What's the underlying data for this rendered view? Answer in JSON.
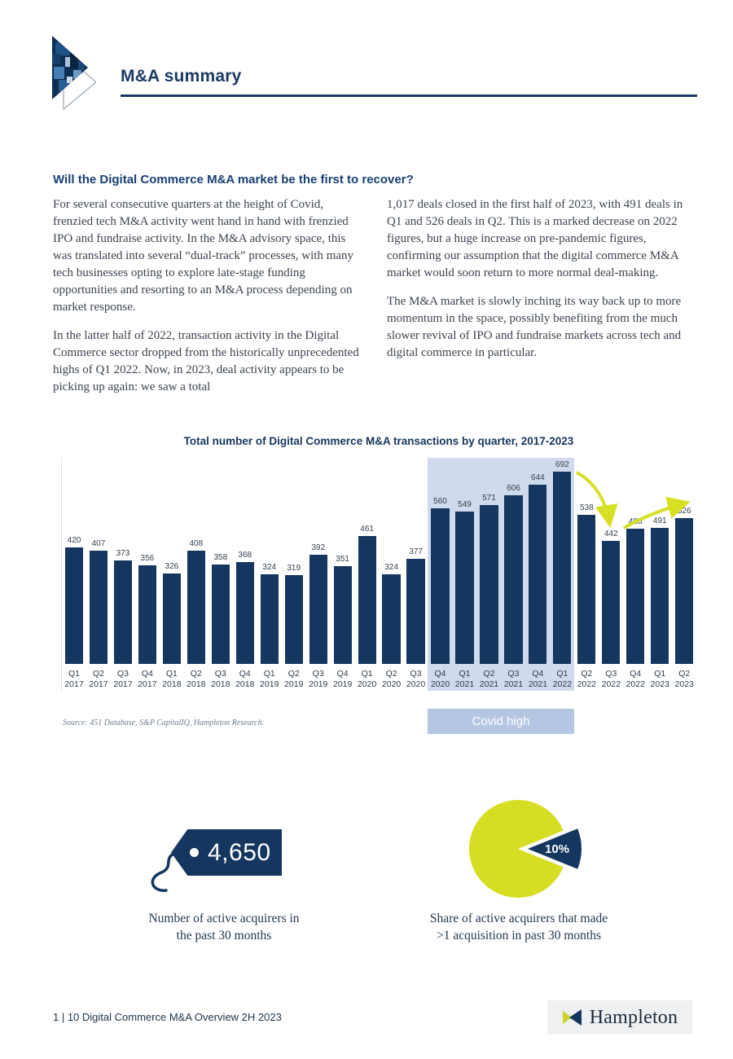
{
  "colors": {
    "navy": "#14365f",
    "accent_green": "#d7df23",
    "covid_band": "#cfdaec",
    "covid_label_bg": "#b5c6e3"
  },
  "header": {
    "title": "M&A summary"
  },
  "article": {
    "heading": "Will the Digital Commerce M&A market be the first to recover?",
    "left_paragraphs": [
      "For several consecutive quarters at the height of Covid, frenzied tech M&A activity went hand in hand with frenzied IPO and fundraise activity. In the M&A advisory space, this was translated into several “dual-track” processes, with many tech businesses opting to explore late-stage funding opportunities and resorting to an M&A process depending on market response.",
      "In the latter half of 2022, transaction activity in the Digital Commerce sector dropped from the historically unprecedented highs of Q1 2022.  Now, in 2023, deal activity appears to be picking up again: we saw a total"
    ],
    "right_paragraphs": [
      "1,017 deals closed in the first half of 2023, with 491 deals in Q1 and 526 deals in Q2. This is a marked decrease on 2022 figures, but a huge increase on pre-pandemic figures, confirming our assumption that the digital commerce M&A market would soon return to more normal deal-making.",
      "The M&A market is slowly inching its way back up to more momentum in the space, possibly benefiting from the much slower revival of IPO and fundraise markets across tech and digital commerce in particular."
    ]
  },
  "chart": {
    "source": "Source: 451 Database, S&P CapitalIQ, Hampleton Research."
  },
  "chart_data": {
    "type": "bar",
    "title": "Total number of Digital Commerce M&A transactions by quarter, 2017-2023",
    "categories": [
      "Q1 2017",
      "Q2 2017",
      "Q3 2017",
      "Q4 2017",
      "Q1 2018",
      "Q2 2018",
      "Q3 2018",
      "Q4 2018",
      "Q1 2019",
      "Q2 2019",
      "Q3 2019",
      "Q4 2019",
      "Q1 2020",
      "Q2 2020",
      "Q3 2020",
      "Q4 2020",
      "Q1 2021",
      "Q2 2021",
      "Q3 2021",
      "Q4 2021",
      "Q1 2022",
      "Q2 2022",
      "Q3 2022",
      "Q4 2022",
      "Q1 2023",
      "Q2 2023"
    ],
    "values": [
      420,
      407,
      373,
      356,
      326,
      408,
      358,
      368,
      324,
      319,
      392,
      351,
      461,
      324,
      377,
      560,
      549,
      571,
      606,
      644,
      692,
      538,
      442,
      488,
      491,
      526
    ],
    "xlabel": "",
    "ylabel": "",
    "ylim": [
      0,
      700
    ],
    "grid": false,
    "bar_color": "#14365f",
    "legend": "none",
    "data_labels": true,
    "highlight_region": {
      "label": "Covid high",
      "from": "Q4 2020",
      "to": "Q1 2022"
    },
    "annotations": [
      "yellow arrow pointing down from the Q1 2022 peak (692) toward Q3 2022 (442)",
      "yellow arrow pointing up-right from Q4 2022 (488) toward Q2 2023 (526)"
    ]
  },
  "infographics": {
    "tag": {
      "value": "4,650",
      "caption_line1": "Number of active acquirers in",
      "caption_line2": "the past 30 months"
    },
    "pie": {
      "value": "10%",
      "caption_line1": "Share of active acquirers that made",
      "caption_line2": ">1 acquisition in past 30 months"
    }
  },
  "footer": {
    "page_info": "1 | 10 Digital Commerce M&A Overview 2H 2023",
    "brand": "Hampleton"
  }
}
